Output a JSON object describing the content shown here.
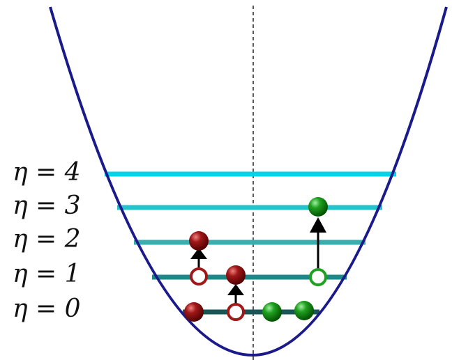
{
  "levels": [
    {
      "label": "η = 4"
    },
    {
      "label": "η = 3"
    },
    {
      "label": "η = 2"
    },
    {
      "label": "η = 1"
    },
    {
      "label": "η = 0"
    }
  ]
}
